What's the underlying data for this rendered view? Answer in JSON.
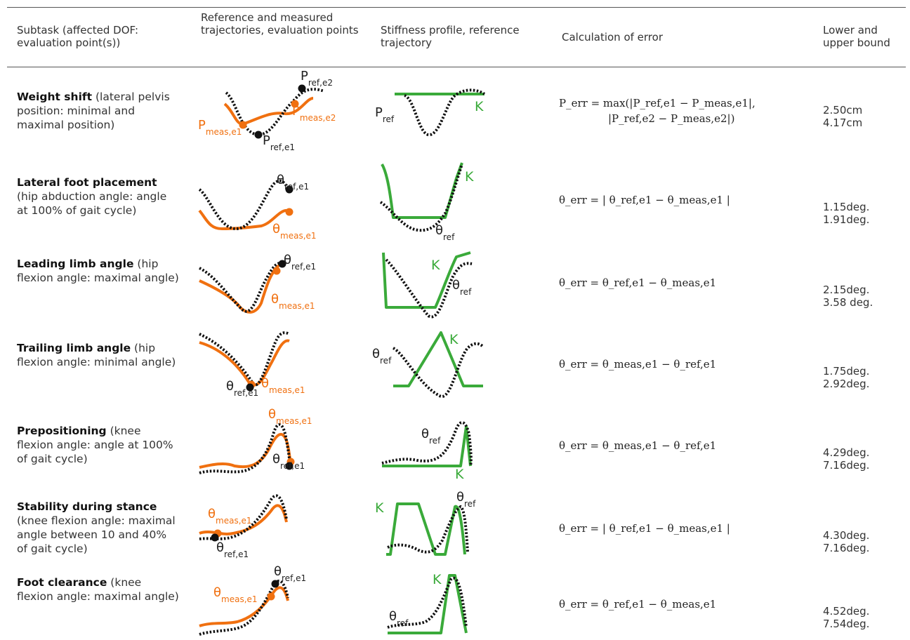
{
  "header": {
    "col_subtask": "Subtask (affected DOF: evaluation point(s))",
    "col_reference": "Reference and measured trajectories, evaluation points",
    "col_stiffness": "Stiffness profile, reference trajectory",
    "col_error": "Calculation of error",
    "col_bounds": "Lower and upper bound"
  },
  "colors": {
    "measured": "#f07010",
    "stiffness": "#3aaa3a",
    "reference": "#111111"
  },
  "rows": [
    {
      "name": "Weight shift",
      "detail": " (lateral pelvis position: minimal and maximal position)",
      "formula_line1": "P_err = max(|P_ref,e1 − P_meas,e1|,",
      "formula_line2": "|P_ref,e2 − P_meas,e2|)",
      "lower": "2.50cm",
      "upper": "4.17cm",
      "labels": {
        "ref_sym": "P",
        "ref_sub1": "ref,e1",
        "ref_sub2": "ref,e2",
        "meas_sym": "P",
        "meas_sub1": "meas,e1",
        "meas_sub2": "meas,e2",
        "stiff_ref_sym": "P",
        "stiff_ref_sub": "ref",
        "stiff_k": "K"
      }
    },
    {
      "name": "Lateral foot placement",
      "detail": " (hip abduction angle: angle at 100% of gait cycle)",
      "formula_line1": "θ_err = | θ_ref,e1 − θ_meas,e1 |",
      "lower": "1.15deg.",
      "upper": "1.91deg.",
      "labels": {
        "ref_sym": "θ",
        "ref_sub1": "ref,e1",
        "meas_sym": "θ",
        "meas_sub1": "meas,e1",
        "stiff_ref_sym": "θ",
        "stiff_ref_sub": "ref",
        "stiff_k": "K"
      }
    },
    {
      "name": "Leading limb angle",
      "detail": " (hip flexion angle: maximal angle)",
      "formula_line1": "θ_err = θ_ref,e1 − θ_meas,e1",
      "lower": "2.15deg.",
      "upper": "3.58 deg.",
      "labels": {
        "ref_sym": "θ",
        "ref_sub1": "ref,e1",
        "meas_sym": "θ",
        "meas_sub1": "meas,e1",
        "stiff_ref_sym": "θ",
        "stiff_ref_sub": "ref",
        "stiff_k": "K"
      }
    },
    {
      "name": "Trailing limb angle",
      "detail": " (hip flexion angle: minimal angle)",
      "formula_line1": "θ_err = θ_meas,e1 − θ_ref,e1",
      "lower": "1.75deg.",
      "upper": "2.92deg.",
      "labels": {
        "ref_sym": "θ",
        "ref_sub1": "ref,e1",
        "meas_sym": "θ",
        "meas_sub1": "meas,e1",
        "stiff_ref_sym": "θ",
        "stiff_ref_sub": "ref",
        "stiff_k": "K"
      }
    },
    {
      "name": "Prepositioning",
      "detail": " (knee flexion angle: angle at 100% of gait cycle)",
      "formula_line1": "θ_err = θ_meas,e1 − θ_ref,e1",
      "lower": "4.29deg.",
      "upper": "7.16deg.",
      "labels": {
        "ref_sym": "θ",
        "ref_sub1": "ref,e1",
        "meas_sym": "θ",
        "meas_sub1": "meas,e1",
        "stiff_ref_sym": "θ",
        "stiff_ref_sub": "ref",
        "stiff_k": "K"
      }
    },
    {
      "name": "Stability during stance",
      "detail": " (knee flexion angle: maximal angle between 10 and 40% of gait cycle)",
      "formula_line1": "θ_err = | θ_ref,e1 − θ_meas,e1 |",
      "lower": "4.30deg.",
      "upper": "7.16deg.",
      "labels": {
        "ref_sym": "θ",
        "ref_sub1": "ref,e1",
        "meas_sym": "θ",
        "meas_sub1": "meas,e1",
        "stiff_ref_sym": "θ",
        "stiff_ref_sub": "ref",
        "stiff_k": "K"
      }
    },
    {
      "name": "Foot clearance",
      "detail": " (knee flexion angle: maximal angle)",
      "formula_line1": "θ_err = θ_ref,e1 − θ_meas,e1",
      "lower": "4.52deg.",
      "upper": "7.54deg.",
      "labels": {
        "ref_sym": "θ",
        "ref_sub1": "ref,e1",
        "meas_sym": "θ",
        "meas_sub1": "meas,e1",
        "stiff_ref_sym": "θ",
        "stiff_ref_sub": "ref",
        "stiff_k": "K"
      }
    }
  ]
}
